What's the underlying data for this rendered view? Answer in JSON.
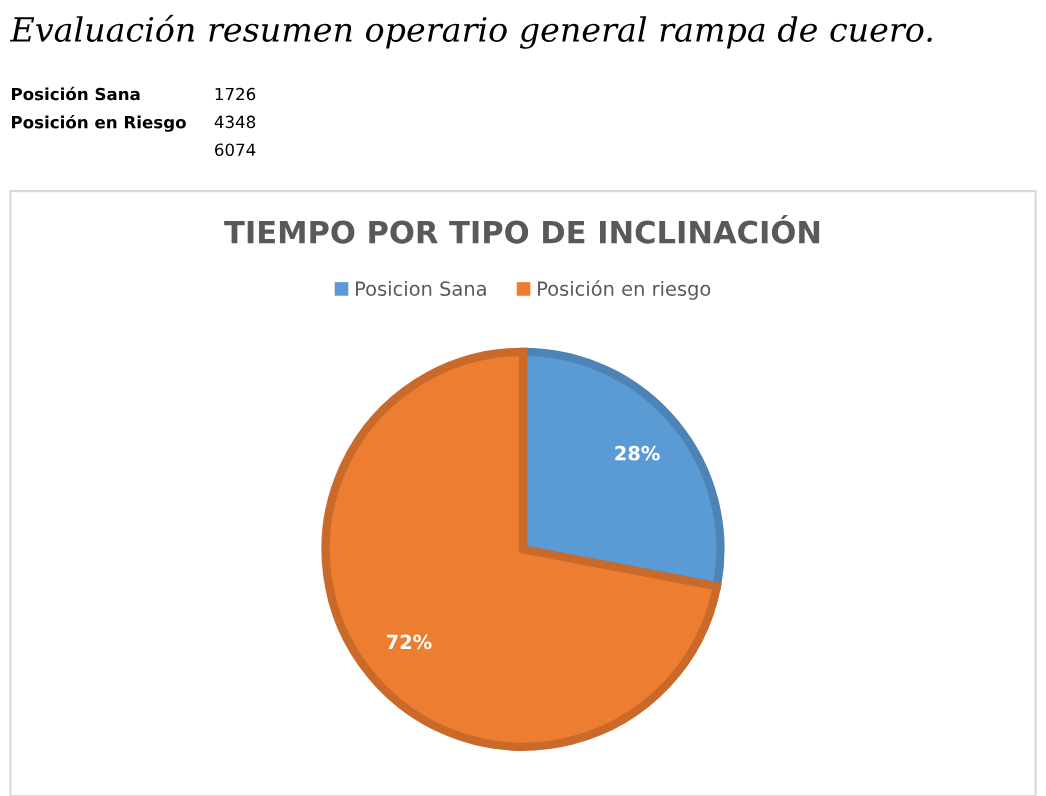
{
  "chart_data": {
    "type": "pie",
    "title": "TIEMPO POR TIPO DE INCLINACIÓN",
    "categories": [
      "Posicion Sana",
      "Posición en riesgo"
    ],
    "values": [
      28,
      72
    ],
    "colors": [
      "#5b9bd5",
      "#ed7d31"
    ],
    "value_labels": [
      "28%",
      "72%"
    ],
    "legend": "top",
    "annotations": [
      "Evaluación resumen operario general rampa de cuero.",
      "Posición Sana",
      "1726",
      "Posición en Riesgo",
      "4348",
      "6074"
    ]
  }
}
